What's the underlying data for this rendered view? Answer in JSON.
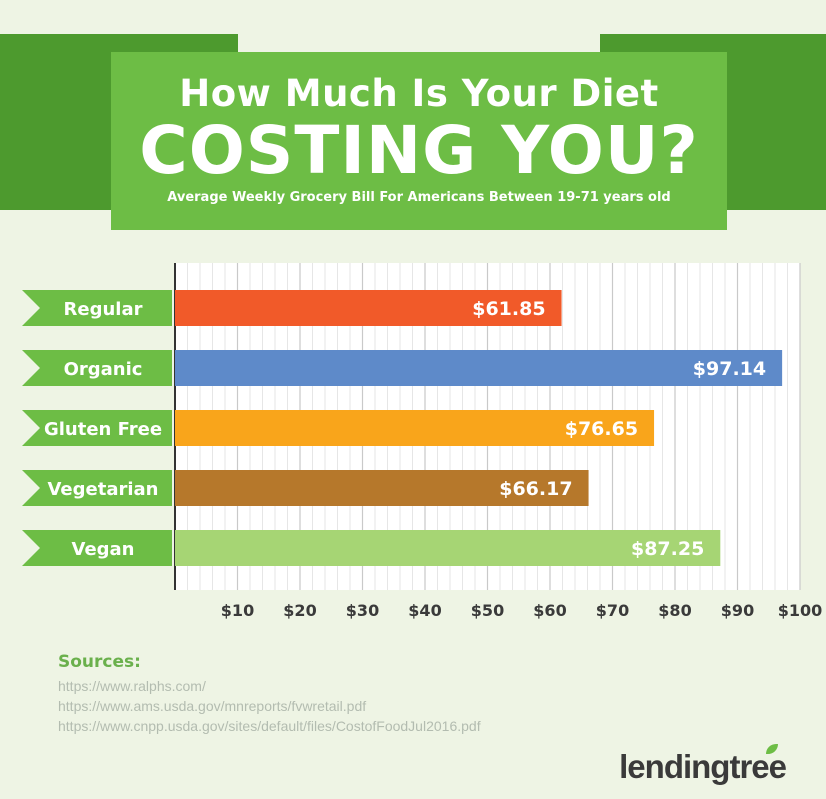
{
  "header": {
    "title_line1": "How Much Is Your Diet",
    "title_line2": "COSTING YOU?",
    "subtitle": "Average Weekly Grocery Bill For Americans Between 19-71 years old"
  },
  "chart_data": {
    "type": "bar",
    "orientation": "horizontal",
    "categories": [
      "Regular",
      "Organic",
      "Gluten Free",
      "Vegetarian",
      "Vegan"
    ],
    "values": [
      61.85,
      97.14,
      76.65,
      66.17,
      87.25
    ],
    "value_labels": [
      "$61.85",
      "$97.14",
      "$76.65",
      "$66.17",
      "$87.25"
    ],
    "colors": [
      "#f15a29",
      "#5e8ac9",
      "#f9a51b",
      "#b6782b",
      "#a6d574"
    ],
    "xlim": [
      0,
      100
    ],
    "ticks": [
      10,
      20,
      30,
      40,
      50,
      60,
      70,
      80,
      90,
      100
    ],
    "tick_labels": [
      "$10",
      "$20",
      "$30",
      "$40",
      "$50",
      "$60",
      "$70",
      "$80",
      "$90",
      "$100"
    ],
    "grid": true,
    "xlabel": "",
    "ylabel": ""
  },
  "colors": {
    "brand_green": "#6dbd45",
    "dark_green": "#4d9a2e",
    "background": "#eef4e4"
  },
  "sources": {
    "heading": "Sources:",
    "items": [
      "https://www.ralphs.com/",
      "https://www.ams.usda.gov/mnreports/fvwretail.pdf",
      "https://www.cnpp.usda.gov/sites/default/files/CostofFoodJul2016.pdf"
    ]
  },
  "logo": {
    "text": "lendingtree"
  }
}
